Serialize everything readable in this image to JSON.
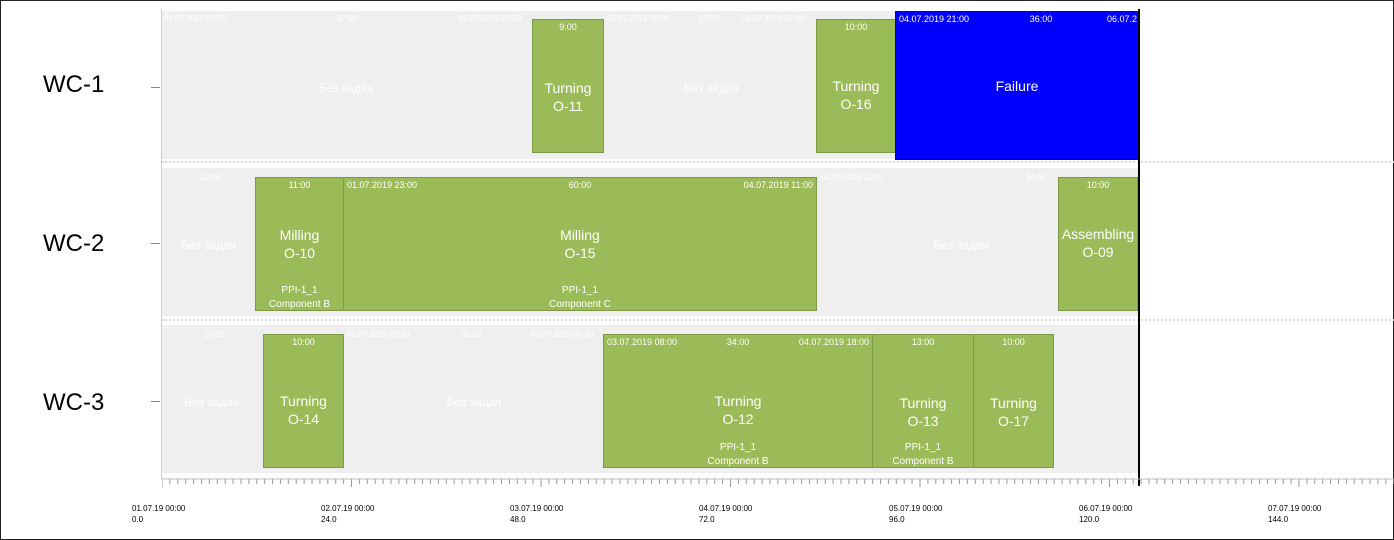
{
  "rows": [
    {
      "label": "WC-1"
    },
    {
      "label": "WC-2"
    },
    {
      "label": "WC-3"
    }
  ],
  "idle_label": "Без задач",
  "faint_labels": {
    "r1_a": "01.07.2019 00:00",
    "r1_b": "47:00",
    "r1_c": "02.07.2019 23:00",
    "r1_d": "03.07.2019 08:00",
    "r1_e": "27:00",
    "r1_f": "04.07.2019 11:00",
    "r2_a": "12:00",
    "r2_b": "04.07.2019 11:00",
    "r2_c": "34:00",
    "r3_a": "13:00",
    "r3_b": "01.07.2019 23:00",
    "r3_c": "31:00",
    "r3_d": "03.07.2019 08:00"
  },
  "tasks": {
    "o11": {
      "duration": "9:00",
      "name": "Turning",
      "op": "O-11"
    },
    "o16": {
      "duration": "10:00",
      "name": "Turning",
      "op": "O-16"
    },
    "failure": {
      "start": "04.07.2019 21:00",
      "duration": "36:00",
      "end": "06.07.2",
      "name": "Failure"
    },
    "o10": {
      "duration": "11:00",
      "name": "Milling",
      "op": "O-10",
      "part": "PPI-1_1",
      "component": "Component B"
    },
    "o15": {
      "start": "01.07.2019 23:00",
      "duration": "60:00",
      "end": "04.07.2019 11:00",
      "name": "Milling",
      "op": "O-15",
      "part": "PPI-1_1",
      "component": "Component C"
    },
    "o09": {
      "duration": "10:00",
      "name": "Assembling",
      "op": "O-09"
    },
    "o14": {
      "duration": "10:00",
      "name": "Turning",
      "op": "O-14"
    },
    "o12": {
      "start": "03.07.2019 08:00",
      "duration": "34:00",
      "end": "04.07.2019 18:00",
      "name": "Turning",
      "op": "O-12",
      "part": "PPI-1_1",
      "component": "Component B"
    },
    "o13": {
      "duration": "13:00",
      "name": "Turning",
      "op": "O-13",
      "part": "PPI-1_1",
      "component": "Component B"
    },
    "o17": {
      "duration": "10:00",
      "name": "Turning",
      "op": "O-17"
    }
  },
  "axis": [
    {
      "date": "01.07.19 00:00",
      "hours": "0.0"
    },
    {
      "date": "02.07.19 00:00",
      "hours": "24.0"
    },
    {
      "date": "03.07.19 00:00",
      "hours": "48.0"
    },
    {
      "date": "04.07.19 00:00",
      "hours": "72.0"
    },
    {
      "date": "05.07.19 00:00",
      "hours": "96.0"
    },
    {
      "date": "06.07.19 00:00",
      "hours": "120.0"
    },
    {
      "date": "07.07.19 00:00",
      "hours": "144.0"
    }
  ],
  "colors": {
    "task": "#9bbb59",
    "failure": "#0000ff",
    "idle": "#efefef"
  }
}
